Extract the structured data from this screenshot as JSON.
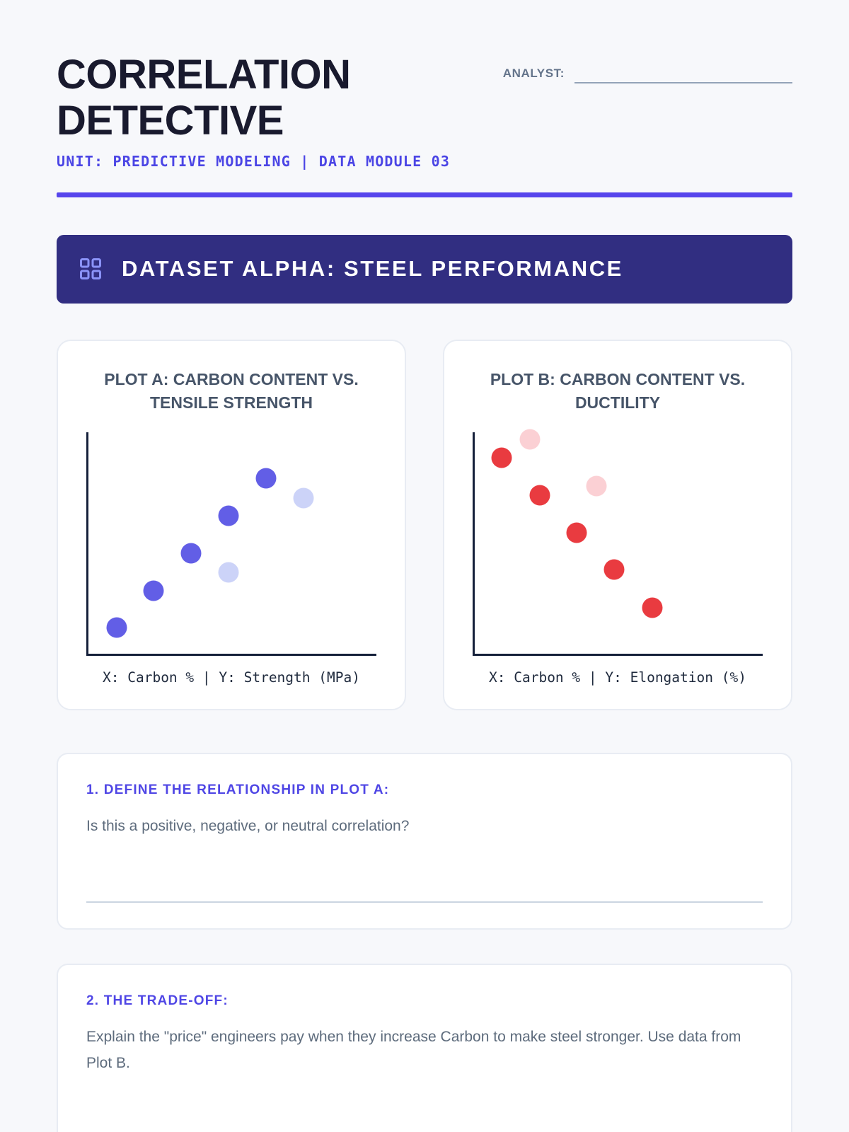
{
  "header": {
    "title": "CORRELATION DETECTIVE",
    "subtitle": "UNIT: PREDICTIVE MODELING | DATA MODULE 03",
    "analyst_label": "ANALYST:"
  },
  "section": {
    "title": "DATASET ALPHA: STEEL PERFORMANCE",
    "icon": "grid-icon"
  },
  "accent_colors": {
    "divider": "#5645ec",
    "banner_background": "#312e81",
    "banner_icon": "#8b93f8",
    "heading_purple": "#4f46e5",
    "subtitle_purple": "#4b45e5",
    "axis": "#15203a",
    "page_background": "#f7f8fb"
  },
  "chart_data": [
    {
      "type": "scatter",
      "title": "PLOT A: CARBON CONTENT VS. TENSILE STRENGTH",
      "title_lines": [
        "PLOT A: CARBON CONTENT VS.",
        "TENSILE STRENGTH"
      ],
      "caption": "X: Carbon % | Y: Strength (MPa)",
      "xlabel": "Carbon %",
      "ylabel": "Strength (MPa)",
      "axes_unlabeled": true,
      "trend": "positive",
      "point_color": "#625ee6",
      "faded_color": "#ccd3f8",
      "points": [
        {
          "x_pct": 9.8,
          "y_pct": 88.1,
          "faded": false
        },
        {
          "x_pct": 22.7,
          "y_pct": 71.4,
          "faded": false
        },
        {
          "x_pct": 35.7,
          "y_pct": 54.7,
          "faded": false
        },
        {
          "x_pct": 48.7,
          "y_pct": 63.2,
          "faded": true
        },
        {
          "x_pct": 48.7,
          "y_pct": 37.7,
          "faded": false
        },
        {
          "x_pct": 61.6,
          "y_pct": 20.8,
          "faded": false
        },
        {
          "x_pct": 74.6,
          "y_pct": 29.6,
          "faded": true
        }
      ]
    },
    {
      "type": "scatter",
      "title": "PLOT B: CARBON CONTENT VS. DUCTILITY",
      "title_lines": [
        "PLOT B: CARBON CONTENT VS.",
        "DUCTILITY"
      ],
      "caption": "X: Carbon % | Y: Elongation (%)",
      "xlabel": "Carbon %",
      "ylabel": "Elongation (%)",
      "axes_unlabeled": true,
      "trend": "negative",
      "point_color": "#e93b40",
      "faded_color": "#fbd0d4",
      "points": [
        {
          "x_pct": 9.3,
          "y_pct": 11.4,
          "faded": false
        },
        {
          "x_pct": 19.1,
          "y_pct": 3.2,
          "faded": true
        },
        {
          "x_pct": 22.5,
          "y_pct": 28.5,
          "faded": false
        },
        {
          "x_pct": 35.5,
          "y_pct": 45.3,
          "faded": false
        },
        {
          "x_pct": 42.3,
          "y_pct": 24.1,
          "faded": true
        },
        {
          "x_pct": 48.4,
          "y_pct": 62.0,
          "faded": false
        },
        {
          "x_pct": 61.6,
          "y_pct": 79.1,
          "faded": false
        }
      ]
    }
  ],
  "questions": [
    {
      "heading": "1. DEFINE THE RELATIONSHIP IN PLOT A:",
      "body": "Is this a positive, negative, or neutral correlation?"
    },
    {
      "heading": "2. THE TRADE-OFF:",
      "body": "Explain the \"price\" engineers pay when they increase Carbon to make steel stronger. Use data from Plot B."
    }
  ]
}
